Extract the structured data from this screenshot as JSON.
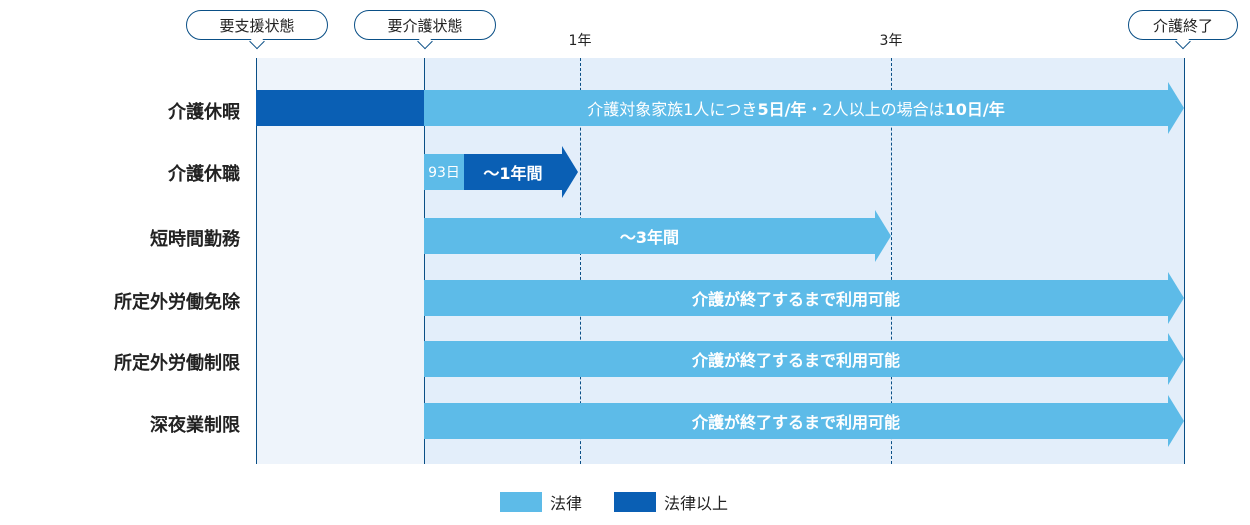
{
  "milestones": {
    "support_required": "要支援状態",
    "care_required": "要介護状態",
    "care_end": "介護終了",
    "year1": "1年",
    "year3": "3年"
  },
  "rows": [
    {
      "label": "介護休暇",
      "bar_text_parts": [
        "介護対象家族1人につき",
        "5日/年",
        "・2人以上の場合は",
        "10日/年"
      ]
    },
    {
      "label": "介護休職",
      "pre_text": "93日",
      "bar_text": "〜1年間"
    },
    {
      "label": "短時間勤務",
      "bar_text": "〜3年間"
    },
    {
      "label": "所定外労働免除",
      "bar_text": "介護が終了するまで利用可能"
    },
    {
      "label": "所定外労働制限",
      "bar_text": "介護が終了するまで利用可能"
    },
    {
      "label": "深夜業制限",
      "bar_text": "介護が終了するまで利用可能"
    }
  ],
  "legend": {
    "law": "法律",
    "above_law": "法律以上"
  },
  "colors": {
    "law": "#5dbbe8",
    "above_law": "#0a5fb4",
    "frame": "#0a4f86"
  }
}
